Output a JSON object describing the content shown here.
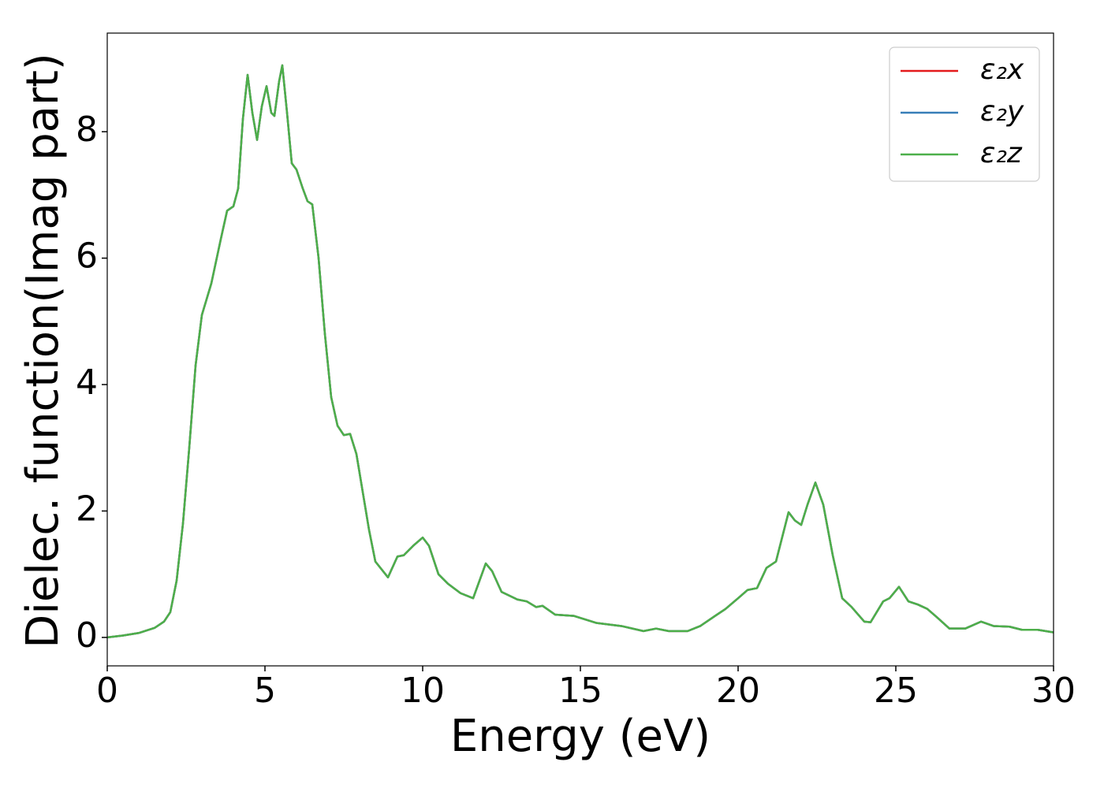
{
  "chart_data": {
    "type": "line",
    "xlabel": "Energy (eV)",
    "ylabel": "Dielec. function(Imag part)",
    "x": [
      0,
      0.5,
      1,
      1.5,
      1.8,
      2.0,
      2.2,
      2.4,
      2.6,
      2.8,
      3.0,
      3.3,
      3.6,
      3.8,
      4.0,
      4.15,
      4.3,
      4.45,
      4.6,
      4.75,
      4.9,
      5.05,
      5.2,
      5.3,
      5.45,
      5.55,
      5.7,
      5.85,
      6.0,
      6.2,
      6.35,
      6.5,
      6.7,
      6.9,
      7.1,
      7.3,
      7.5,
      7.7,
      7.9,
      8.1,
      8.3,
      8.5,
      8.9,
      9.2,
      9.4,
      9.7,
      10.0,
      10.2,
      10.5,
      10.8,
      11.2,
      11.6,
      12.0,
      12.2,
      12.5,
      13.0,
      13.3,
      13.6,
      13.8,
      14.2,
      14.8,
      15.5,
      16.3,
      17.0,
      17.4,
      17.8,
      18.4,
      18.8,
      19.3,
      19.6,
      20.0,
      20.3,
      20.6,
      20.9,
      21.2,
      21.6,
      21.8,
      22.0,
      22.2,
      22.45,
      22.7,
      23.0,
      23.3,
      23.6,
      24.0,
      24.2,
      24.6,
      24.8,
      25.1,
      25.4,
      25.7,
      26.0,
      26.3,
      26.7,
      27.2,
      27.7,
      28.1,
      28.6,
      29.0,
      29.5,
      30.0
    ],
    "series": [
      {
        "name": "ε₂x",
        "color": "#e41a1c",
        "values": [
          0,
          0.03,
          0.07,
          0.15,
          0.25,
          0.4,
          0.9,
          1.8,
          3.0,
          4.3,
          5.1,
          5.6,
          6.3,
          6.75,
          6.82,
          7.1,
          8.2,
          8.9,
          8.3,
          7.87,
          8.4,
          8.72,
          8.3,
          8.25,
          8.8,
          9.05,
          8.3,
          7.5,
          7.4,
          7.1,
          6.9,
          6.85,
          6.0,
          4.8,
          3.8,
          3.35,
          3.2,
          3.22,
          2.9,
          2.3,
          1.7,
          1.2,
          0.95,
          1.28,
          1.3,
          1.45,
          1.58,
          1.45,
          1.0,
          0.85,
          0.7,
          0.62,
          1.17,
          1.05,
          0.72,
          0.6,
          0.57,
          0.48,
          0.5,
          0.36,
          0.34,
          0.23,
          0.18,
          0.1,
          0.14,
          0.1,
          0.1,
          0.18,
          0.35,
          0.45,
          0.62,
          0.75,
          0.78,
          1.1,
          1.2,
          1.98,
          1.85,
          1.78,
          2.1,
          2.45,
          2.1,
          1.3,
          0.62,
          0.48,
          0.25,
          0.24,
          0.57,
          0.62,
          0.8,
          0.57,
          0.52,
          0.45,
          0.32,
          0.14,
          0.14,
          0.25,
          0.18,
          0.17,
          0.12,
          0.12,
          0.08
        ]
      },
      {
        "name": "ε₂y",
        "color": "#377eb8",
        "values": [
          0,
          0.03,
          0.07,
          0.15,
          0.25,
          0.4,
          0.9,
          1.8,
          3.0,
          4.3,
          5.1,
          5.6,
          6.3,
          6.75,
          6.82,
          7.1,
          8.2,
          8.9,
          8.3,
          7.87,
          8.4,
          8.72,
          8.3,
          8.25,
          8.8,
          9.05,
          8.3,
          7.5,
          7.4,
          7.1,
          6.9,
          6.85,
          6.0,
          4.8,
          3.8,
          3.35,
          3.2,
          3.22,
          2.9,
          2.3,
          1.7,
          1.2,
          0.95,
          1.28,
          1.3,
          1.45,
          1.58,
          1.45,
          1.0,
          0.85,
          0.7,
          0.62,
          1.17,
          1.05,
          0.72,
          0.6,
          0.57,
          0.48,
          0.5,
          0.36,
          0.34,
          0.23,
          0.18,
          0.1,
          0.14,
          0.1,
          0.1,
          0.18,
          0.35,
          0.45,
          0.62,
          0.75,
          0.78,
          1.1,
          1.2,
          1.98,
          1.85,
          1.78,
          2.1,
          2.45,
          2.1,
          1.3,
          0.62,
          0.48,
          0.25,
          0.24,
          0.57,
          0.62,
          0.8,
          0.57,
          0.52,
          0.45,
          0.32,
          0.14,
          0.14,
          0.25,
          0.18,
          0.17,
          0.12,
          0.12,
          0.08
        ]
      },
      {
        "name": "ε₂z",
        "color": "#4daf4a",
        "values": [
          0,
          0.03,
          0.07,
          0.15,
          0.25,
          0.4,
          0.9,
          1.8,
          3.0,
          4.3,
          5.1,
          5.6,
          6.3,
          6.75,
          6.82,
          7.1,
          8.2,
          8.9,
          8.3,
          7.87,
          8.4,
          8.72,
          8.3,
          8.25,
          8.8,
          9.05,
          8.3,
          7.5,
          7.4,
          7.1,
          6.9,
          6.85,
          6.0,
          4.8,
          3.8,
          3.35,
          3.2,
          3.22,
          2.9,
          2.3,
          1.7,
          1.2,
          0.95,
          1.28,
          1.3,
          1.45,
          1.58,
          1.45,
          1.0,
          0.85,
          0.7,
          0.62,
          1.17,
          1.05,
          0.72,
          0.6,
          0.57,
          0.48,
          0.5,
          0.36,
          0.34,
          0.23,
          0.18,
          0.1,
          0.14,
          0.1,
          0.1,
          0.18,
          0.35,
          0.45,
          0.62,
          0.75,
          0.78,
          1.1,
          1.2,
          1.98,
          1.85,
          1.78,
          2.1,
          2.45,
          2.1,
          1.3,
          0.62,
          0.48,
          0.25,
          0.24,
          0.57,
          0.62,
          0.8,
          0.57,
          0.52,
          0.45,
          0.32,
          0.14,
          0.14,
          0.25,
          0.18,
          0.17,
          0.12,
          0.12,
          0.08
        ]
      }
    ],
    "xlim": [
      0,
      30
    ],
    "xticks": [
      0,
      5,
      10,
      15,
      20,
      25,
      30
    ],
    "ylim": [
      -0.45,
      9.56
    ],
    "yticks": [
      0,
      2,
      4,
      6,
      8
    ],
    "legend": "upper right"
  }
}
